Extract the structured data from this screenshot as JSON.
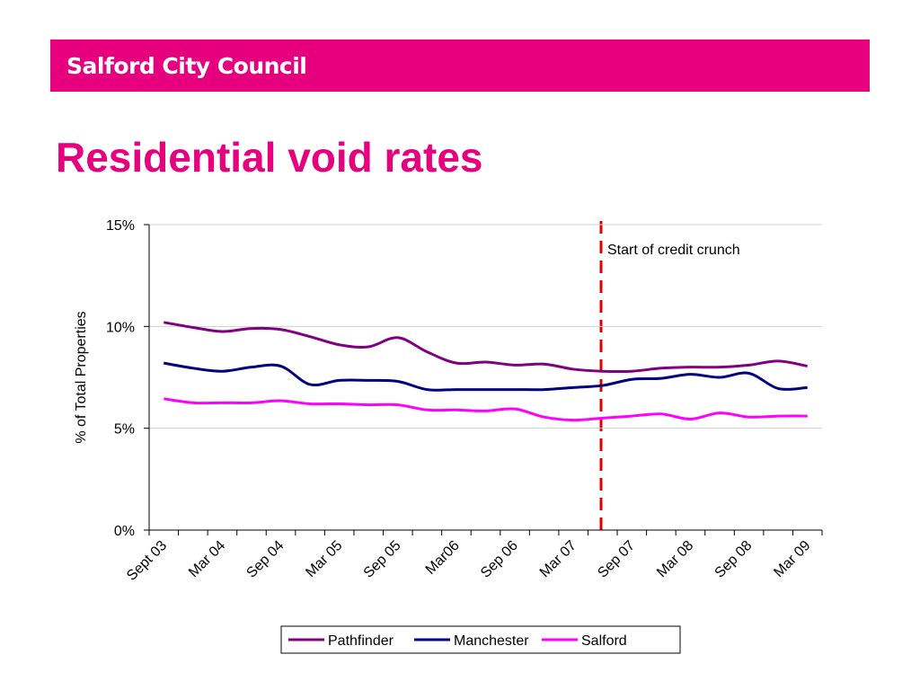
{
  "header": {
    "title": "Salford City Council"
  },
  "chart_data": {
    "type": "line",
    "title": "Residential void rates",
    "ylabel": "% of Total Properties",
    "annotation": "Start of credit crunch",
    "categories": [
      "Sept 03",
      null,
      "Mar 04",
      null,
      "Sep 04",
      null,
      "Mar 05",
      null,
      "Sep 05",
      null,
      "Mar06",
      null,
      "Sep 06",
      null,
      "Mar 07",
      null,
      "Sep 07",
      null,
      "Mar 08",
      null,
      "Sep 08",
      null,
      "Mar 09"
    ],
    "series": [
      {
        "name": "Pathfinder",
        "color": "#800080",
        "values": [
          10.2,
          9.95,
          9.75,
          9.9,
          9.85,
          9.5,
          9.1,
          9.0,
          9.45,
          8.75,
          8.2,
          8.25,
          8.1,
          8.15,
          7.9,
          7.8,
          7.8,
          7.95,
          8.0,
          8.0,
          8.1,
          8.3,
          8.05
        ]
      },
      {
        "name": "Manchester",
        "color": "#000080",
        "values": [
          8.2,
          7.95,
          7.8,
          8.0,
          8.05,
          7.15,
          7.35,
          7.35,
          7.3,
          6.9,
          6.9,
          6.9,
          6.9,
          6.9,
          7.0,
          7.1,
          7.4,
          7.45,
          7.65,
          7.5,
          7.7,
          6.95,
          7.0
        ]
      },
      {
        "name": "Salford",
        "color": "#ff00ff",
        "values": [
          6.45,
          6.25,
          6.25,
          6.25,
          6.35,
          6.2,
          6.2,
          6.15,
          6.15,
          5.9,
          5.9,
          5.85,
          5.95,
          5.55,
          5.4,
          5.5,
          5.6,
          5.7,
          5.45,
          5.75,
          5.55,
          5.6,
          5.6
        ]
      }
    ],
    "ylim": [
      0,
      15
    ],
    "yticks": [
      {
        "value": 0,
        "label": "0%"
      },
      {
        "value": 5,
        "label": "5%"
      },
      {
        "value": 10,
        "label": "10%"
      },
      {
        "value": 15,
        "label": "15%"
      }
    ],
    "grid": true,
    "legend": "bottom"
  }
}
